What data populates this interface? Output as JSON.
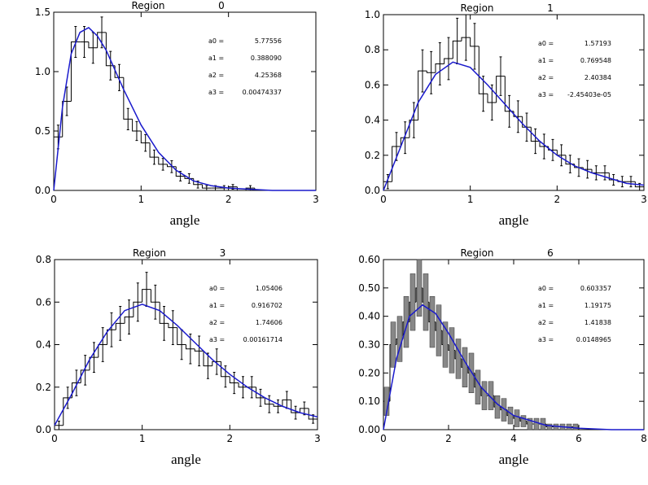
{
  "chart_data": [
    {
      "type": "histogram",
      "title": "Region",
      "title_number": "0",
      "xlabel": "angle",
      "bins": [
        0,
        0.1,
        0.2,
        0.3,
        0.4,
        0.5,
        0.6,
        0.7,
        0.8,
        0.9,
        1.0,
        1.1,
        1.2,
        1.3,
        1.4,
        1.5,
        1.6,
        1.7,
        1.8,
        1.9,
        2.0,
        2.1,
        2.2,
        2.3,
        2.4,
        2.5,
        2.6,
        2.7,
        2.8,
        2.9,
        3.0
      ],
      "values": [
        0.45,
        0.75,
        1.25,
        1.25,
        1.2,
        1.33,
        1.05,
        0.95,
        0.6,
        0.5,
        0.4,
        0.28,
        0.22,
        0.2,
        0.12,
        0.1,
        0.05,
        0.02,
        0.02,
        0.02,
        0.03,
        0,
        0.02,
        0,
        0,
        0,
        0,
        0,
        0,
        0
      ],
      "errors": [
        0.1,
        0.12,
        0.13,
        0.13,
        0.13,
        0.13,
        0.12,
        0.11,
        0.09,
        0.08,
        0.07,
        0.06,
        0.05,
        0.05,
        0.04,
        0.04,
        0.03,
        0.02,
        0.02,
        0.02,
        0.02,
        0,
        0.02,
        0,
        0,
        0,
        0,
        0,
        0,
        0
      ],
      "error_style": "bar",
      "fit": {
        "color": "#1a1acc",
        "x": [
          0,
          0.1,
          0.2,
          0.3,
          0.4,
          0.5,
          0.6,
          0.8,
          1.0,
          1.2,
          1.4,
          1.6,
          1.8,
          2.0,
          2.5,
          3.0
        ],
        "values": [
          0,
          0.7,
          1.15,
          1.33,
          1.37,
          1.3,
          1.18,
          0.85,
          0.55,
          0.32,
          0.17,
          0.08,
          0.04,
          0.02,
          0,
          0
        ]
      },
      "xlim": [
        0,
        3
      ],
      "ylim": [
        0,
        1.5
      ],
      "xticks": [
        0,
        1,
        2,
        3
      ],
      "yticks": [
        {
          "value": 0,
          "label": "0.0"
        },
        {
          "value": 0.5,
          "label": "0.5"
        },
        {
          "value": 1,
          "label": "1.0"
        },
        {
          "value": 1.5,
          "label": "1.5"
        }
      ],
      "parameters": [
        {
          "label": "a0 =",
          "value": "5.77556"
        },
        {
          "label": "a1 =",
          "value": "0.388090"
        },
        {
          "label": "a2 =",
          "value": "4.25368"
        },
        {
          "label": "a3 =",
          "value": "0.00474337"
        }
      ]
    },
    {
      "type": "histogram",
      "title": "Region",
      "title_number": "1",
      "xlabel": "angle",
      "bins": [
        0,
        0.1,
        0.2,
        0.3,
        0.4,
        0.5,
        0.6,
        0.7,
        0.8,
        0.9,
        1.0,
        1.1,
        1.2,
        1.3,
        1.4,
        1.5,
        1.6,
        1.7,
        1.8,
        1.9,
        2.0,
        2.1,
        2.2,
        2.3,
        2.4,
        2.5,
        2.6,
        2.7,
        2.8,
        2.9,
        3.0
      ],
      "values": [
        0.05,
        0.25,
        0.3,
        0.4,
        0.68,
        0.67,
        0.72,
        0.75,
        0.85,
        0.87,
        0.82,
        0.55,
        0.5,
        0.65,
        0.45,
        0.42,
        0.36,
        0.28,
        0.25,
        0.23,
        0.2,
        0.15,
        0.13,
        0.12,
        0.1,
        0.1,
        0.06,
        0.05,
        0.05,
        0.02
      ],
      "errors": [
        0.04,
        0.08,
        0.09,
        0.1,
        0.12,
        0.12,
        0.12,
        0.12,
        0.13,
        0.13,
        0.13,
        0.1,
        0.1,
        0.11,
        0.09,
        0.09,
        0.08,
        0.07,
        0.07,
        0.06,
        0.06,
        0.05,
        0.05,
        0.05,
        0.04,
        0.04,
        0.03,
        0.03,
        0.03,
        0.02
      ],
      "error_style": "bar",
      "fit": {
        "color": "#1a1acc",
        "x": [
          0,
          0.2,
          0.4,
          0.6,
          0.8,
          1.0,
          1.2,
          1.4,
          1.6,
          1.8,
          2.0,
          2.2,
          2.4,
          2.6,
          2.8,
          3.0
        ],
        "values": [
          0,
          0.25,
          0.5,
          0.66,
          0.73,
          0.7,
          0.6,
          0.49,
          0.38,
          0.28,
          0.2,
          0.14,
          0.1,
          0.07,
          0.04,
          0.03
        ]
      },
      "xlim": [
        0,
        3
      ],
      "ylim": [
        0,
        1
      ],
      "xticks": [
        0,
        1,
        2,
        3
      ],
      "yticks": [
        {
          "value": 0,
          "label": "0.0"
        },
        {
          "value": 0.2,
          "label": "0.2"
        },
        {
          "value": 0.4,
          "label": "0.4"
        },
        {
          "value": 0.6,
          "label": "0.6"
        },
        {
          "value": 0.8,
          "label": "0.8"
        },
        {
          "value": 1,
          "label": "1.0"
        }
      ],
      "parameters": [
        {
          "label": "a0 =",
          "value": "1.57193"
        },
        {
          "label": "a1 =",
          "value": "0.769548"
        },
        {
          "label": "a2 =",
          "value": "2.40384"
        },
        {
          "label": "a3 =",
          "value": "-2.45403e-05"
        }
      ]
    },
    {
      "type": "histogram",
      "title": "Region",
      "title_number": "3",
      "xlabel": "angle",
      "bins": [
        0,
        0.1,
        0.2,
        0.3,
        0.4,
        0.5,
        0.6,
        0.7,
        0.8,
        0.9,
        1.0,
        1.1,
        1.2,
        1.3,
        1.4,
        1.5,
        1.6,
        1.7,
        1.8,
        1.9,
        2.0,
        2.1,
        2.2,
        2.3,
        2.4,
        2.5,
        2.6,
        2.7,
        2.8,
        2.9,
        3.0
      ],
      "values": [
        0.02,
        0.15,
        0.22,
        0.28,
        0.34,
        0.4,
        0.47,
        0.5,
        0.53,
        0.6,
        0.66,
        0.6,
        0.5,
        0.48,
        0.4,
        0.38,
        0.37,
        0.3,
        0.32,
        0.25,
        0.22,
        0.2,
        0.2,
        0.15,
        0.12,
        0.11,
        0.14,
        0.08,
        0.1,
        0.05
      ],
      "errors": [
        0.02,
        0.05,
        0.06,
        0.07,
        0.07,
        0.08,
        0.08,
        0.08,
        0.08,
        0.09,
        0.08,
        0.08,
        0.08,
        0.08,
        0.07,
        0.07,
        0.07,
        0.06,
        0.06,
        0.05,
        0.05,
        0.05,
        0.05,
        0.04,
        0.04,
        0.03,
        0.04,
        0.03,
        0.03,
        0.02
      ],
      "error_style": "bar",
      "fit": {
        "color": "#1a1acc",
        "x": [
          0,
          0.2,
          0.4,
          0.6,
          0.8,
          1.0,
          1.2,
          1.4,
          1.6,
          1.8,
          2.0,
          2.2,
          2.4,
          2.6,
          2.8,
          3.0
        ],
        "values": [
          0.02,
          0.17,
          0.33,
          0.46,
          0.56,
          0.59,
          0.56,
          0.49,
          0.41,
          0.33,
          0.26,
          0.2,
          0.15,
          0.11,
          0.08,
          0.06
        ]
      },
      "xlim": [
        0,
        3
      ],
      "ylim": [
        0,
        0.8
      ],
      "xticks": [
        0,
        1,
        2,
        3
      ],
      "yticks": [
        {
          "value": 0,
          "label": "0.0"
        },
        {
          "value": 0.2,
          "label": "0.2"
        },
        {
          "value": 0.4,
          "label": "0.4"
        },
        {
          "value": 0.6,
          "label": "0.6"
        },
        {
          "value": 0.8,
          "label": "0.8"
        }
      ],
      "parameters": [
        {
          "label": "a0 =",
          "value": "1.05406"
        },
        {
          "label": "a1 =",
          "value": "0.916702"
        },
        {
          "label": "a2 =",
          "value": "1.74606"
        },
        {
          "label": "a3 =",
          "value": "0.00161714"
        }
      ]
    },
    {
      "type": "histogram",
      "title": "Region",
      "title_number": "6",
      "xlabel": "angle",
      "bins": [
        0,
        0.2,
        0.4,
        0.6,
        0.8,
        1.0,
        1.2,
        1.4,
        1.6,
        1.8,
        2.0,
        2.2,
        2.4,
        2.6,
        2.8,
        3.0,
        3.2,
        3.4,
        3.6,
        3.8,
        4.0,
        4.2,
        4.4,
        4.6,
        4.8,
        5.0,
        5.2,
        5.4,
        5.6,
        5.8,
        6.0,
        6.2,
        6.4,
        6.6,
        6.8,
        7.0,
        7.2,
        7.4,
        7.6,
        7.8,
        8.0
      ],
      "values": [
        0.1,
        0.3,
        0.32,
        0.38,
        0.45,
        0.5,
        0.45,
        0.38,
        0.35,
        0.3,
        0.28,
        0.25,
        0.22,
        0.2,
        0.15,
        0.12,
        0.12,
        0.08,
        0.07,
        0.05,
        0.04,
        0.03,
        0.02,
        0.02,
        0.02,
        0.01,
        0.01,
        0.01,
        0.01,
        0.01,
        0,
        0,
        0,
        0,
        0,
        0,
        0,
        0,
        0,
        0
      ],
      "errors": [
        0.05,
        0.08,
        0.08,
        0.09,
        0.1,
        0.1,
        0.1,
        0.09,
        0.09,
        0.08,
        0.08,
        0.07,
        0.07,
        0.07,
        0.06,
        0.05,
        0.05,
        0.04,
        0.04,
        0.03,
        0.03,
        0.02,
        0.02,
        0.02,
        0.02,
        0.01,
        0.01,
        0.01,
        0.01,
        0.01,
        0,
        0,
        0,
        0,
        0,
        0,
        0,
        0,
        0,
        0
      ],
      "error_style": "box",
      "fit": {
        "color": "#1a1acc",
        "x": [
          0,
          0.4,
          0.8,
          1.2,
          1.6,
          2.0,
          2.5,
          3.0,
          3.5,
          4.0,
          5.0,
          6.0,
          7.0,
          8.0
        ],
        "values": [
          0,
          0.25,
          0.4,
          0.44,
          0.41,
          0.34,
          0.24,
          0.15,
          0.09,
          0.05,
          0.015,
          0.005,
          0,
          0
        ]
      },
      "xlim": [
        0,
        8
      ],
      "ylim": [
        0,
        0.6
      ],
      "xticks": [
        0,
        2,
        4,
        6,
        8
      ],
      "yticks": [
        {
          "value": 0,
          "label": "0.00"
        },
        {
          "value": 0.1,
          "label": "0.10"
        },
        {
          "value": 0.2,
          "label": "0.20"
        },
        {
          "value": 0.3,
          "label": "0.30"
        },
        {
          "value": 0.4,
          "label": "0.40"
        },
        {
          "value": 0.5,
          "label": "0.50"
        },
        {
          "value": 0.6,
          "label": "0.60"
        }
      ],
      "parameters": [
        {
          "label": "a0 =",
          "value": "0.603357"
        },
        {
          "label": "a1 =",
          "value": "1.19175"
        },
        {
          "label": "a2 =",
          "value": "1.41838"
        },
        {
          "label": "a3 =",
          "value": "0.0148965"
        }
      ]
    }
  ]
}
